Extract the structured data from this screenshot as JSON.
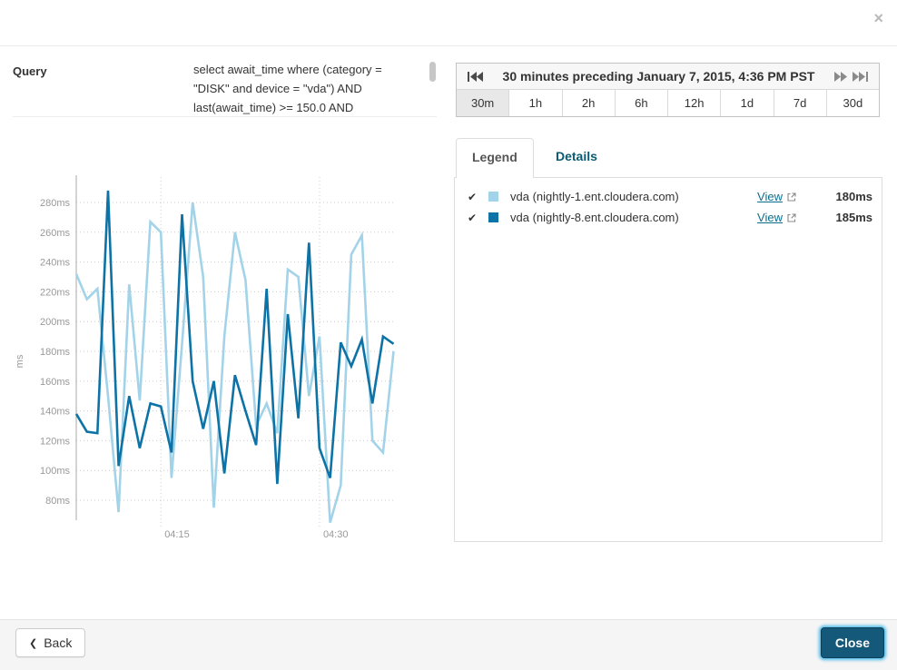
{
  "modal": {
    "close_icon": "×"
  },
  "query": {
    "label": "Query",
    "text": "select await_time where (category = \"DISK\" and device = \"vda\") AND last(await_time) >= 150.0 AND"
  },
  "time_range": {
    "title": "30 minutes preceding January 7, 2015, 4:36 PM PST",
    "buttons": [
      "30m",
      "1h",
      "2h",
      "6h",
      "12h",
      "1d",
      "7d",
      "30d"
    ],
    "selected": "30m"
  },
  "tabs": {
    "legend": "Legend",
    "details": "Details",
    "active": "Legend"
  },
  "legend": {
    "rows": [
      {
        "check": "✔",
        "color": "#a3d3e8",
        "label": "vda (nightly-1.ent.cloudera.com)",
        "link": "View",
        "value": "180ms"
      },
      {
        "check": "✔",
        "color": "#0d73a6",
        "label": "vda (nightly-8.ent.cloudera.com)",
        "link": "View",
        "value": "185ms"
      }
    ]
  },
  "footer": {
    "back": "Back",
    "close": "Close"
  },
  "colors": {
    "series_light": "#a3d3e8",
    "series_dark": "#0d73a6",
    "link": "#0b6e8e",
    "details_tab": "#0a5a73",
    "close_button": "#14587a",
    "close_focus_ring": "#2fb0e8",
    "grid": "#cccccc",
    "axis": "#aaaaaa",
    "tick_text": "#999999"
  },
  "chart_data": {
    "type": "line",
    "title": "",
    "ylabel": "ms",
    "y_unit": "ms",
    "y_ticks": [
      280,
      260,
      240,
      220,
      200,
      180,
      160,
      140,
      120,
      100,
      80
    ],
    "ylim": [
      60,
      295
    ],
    "x_ticks": [
      {
        "index": 8,
        "label": "04:15"
      },
      {
        "index": 23,
        "label": "04:30"
      }
    ],
    "x_span_minutes": 30,
    "grid": "dotted",
    "legend_position": "right-panel",
    "series": [
      {
        "name": "vda (nightly-1.ent.cloudera.com)",
        "color": "#a3d3e8",
        "current": "180ms",
        "values": [
          232,
          215,
          222,
          150,
          72,
          225,
          147,
          267,
          260,
          95,
          185,
          280,
          230,
          75,
          190,
          260,
          228,
          130,
          145,
          125,
          235,
          230,
          150,
          190,
          65,
          90,
          245,
          258,
          120,
          112,
          180
        ]
      },
      {
        "name": "vda (nightly-8.ent.cloudera.com)",
        "color": "#0d73a6",
        "current": "185ms",
        "values": [
          138,
          126,
          125,
          288,
          103,
          150,
          115,
          145,
          143,
          112,
          272,
          160,
          128,
          160,
          98,
          164,
          140,
          117,
          222,
          91,
          205,
          135,
          253,
          115,
          95,
          186,
          170,
          188,
          145,
          190,
          185
        ]
      }
    ]
  }
}
